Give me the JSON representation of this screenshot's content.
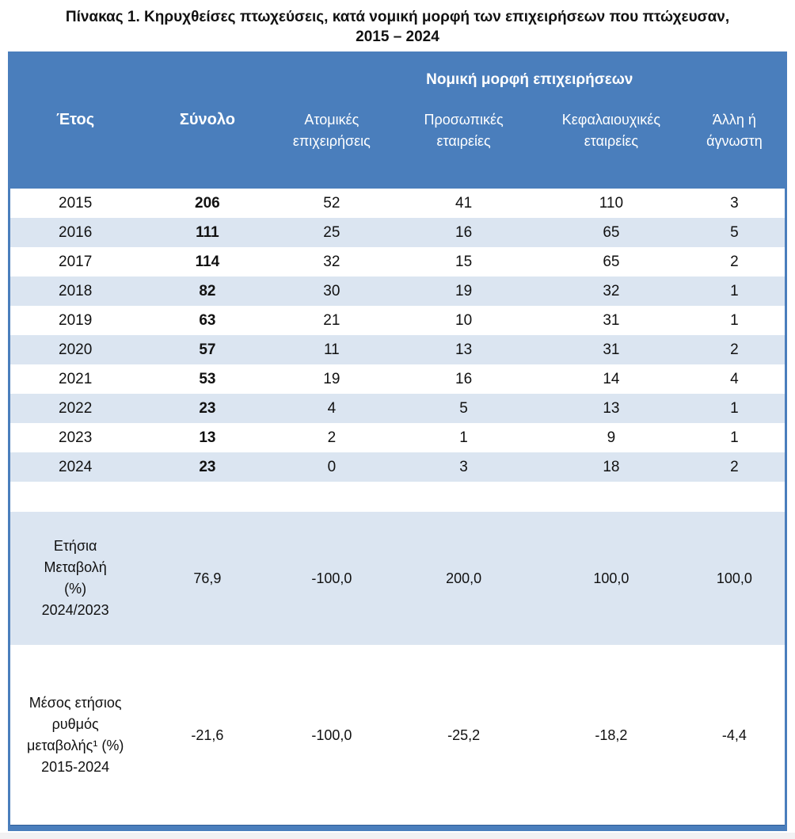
{
  "page": {
    "title": "Πίνακας 1. Κηρυχθείσες πτωχεύσεις, κατά νομική μορφή των επιχειρήσεων που πτώχευσαν,\n2015 – 2024"
  },
  "colors": {
    "header_blue": "#4a7ebc",
    "band_light_blue": "#dbe5f1",
    "border_blue": "#4a7ebc",
    "header_text": "#ffffff",
    "body_text": "#111111"
  },
  "table": {
    "group_header": "Νομική μορφή επιχειρήσεων",
    "columns": [
      "Έτος",
      "Σύνολο",
      "Ατομικές\nεπιχειρήσεις",
      "Προσωπικές\nεταιρείες",
      "Κεφαλαιουχικές\nεταιρείες",
      "Άλλη ή\nάγνωστη"
    ],
    "rows": [
      [
        "2015",
        "206",
        "52",
        "41",
        "110",
        "3"
      ],
      [
        "2016",
        "111",
        "25",
        "16",
        "65",
        "5"
      ],
      [
        "2017",
        "114",
        "32",
        "15",
        "65",
        "2"
      ],
      [
        "2018",
        "82",
        "30",
        "19",
        "32",
        "1"
      ],
      [
        "2019",
        "63",
        "21",
        "10",
        "31",
        "1"
      ],
      [
        "2020",
        "57",
        "11",
        "13",
        "31",
        "2"
      ],
      [
        "2021",
        "53",
        "19",
        "16",
        "14",
        "4"
      ],
      [
        "2022",
        "23",
        "4",
        "5",
        "13",
        "1"
      ],
      [
        "2023",
        "13",
        "2",
        "1",
        "9",
        "1"
      ],
      [
        "2024",
        "23",
        "0",
        "3",
        "18",
        "2"
      ]
    ],
    "summary": [
      {
        "label": "Ετήσια\nΜεταβολή\n(%)\n2024/2023",
        "values": [
          "76,9",
          "-100,0",
          "200,0",
          "100,0",
          "100,0"
        ]
      },
      {
        "label": "Μέσος ετήσιος\nρυθμός\nμεταβολής¹ (%)\n2015-2024",
        "values": [
          "-21,6",
          "-100,0",
          "-25,2",
          "-18,2",
          "-4,4"
        ]
      }
    ]
  }
}
